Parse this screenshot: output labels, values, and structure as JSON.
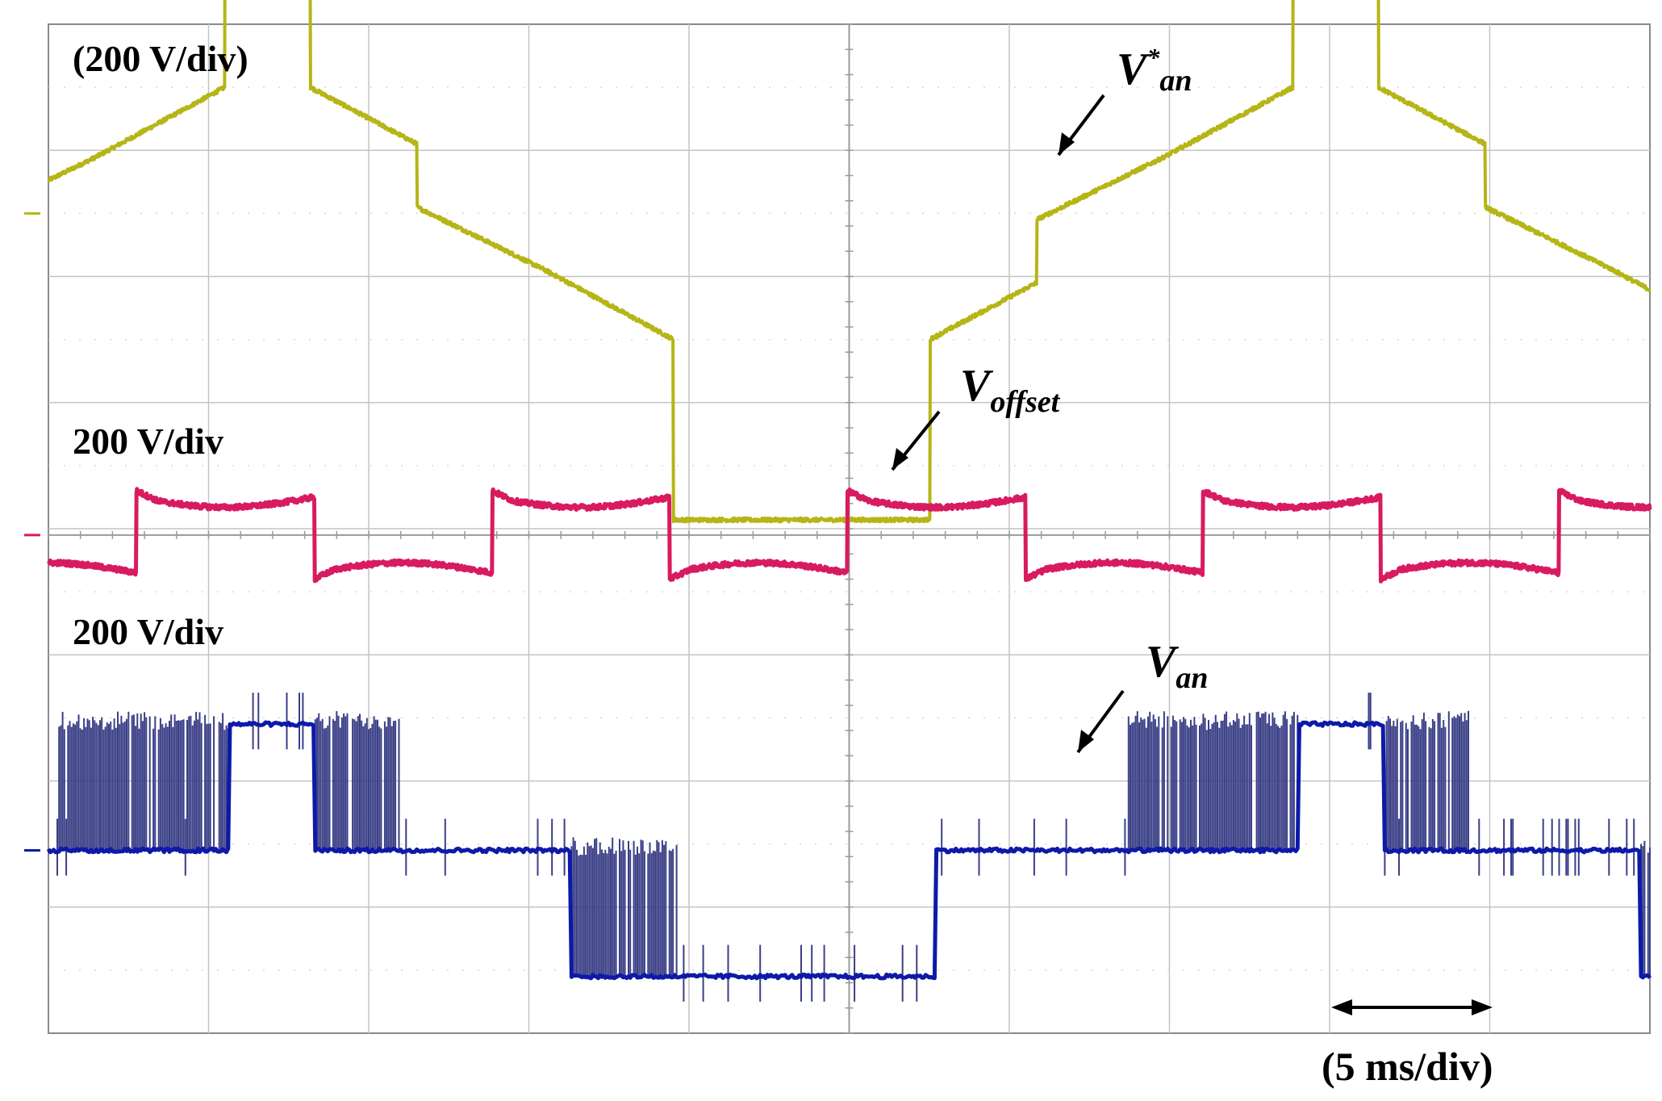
{
  "chart_data": {
    "type": "line",
    "grid": true,
    "divisions": {
      "x": 10,
      "y": 8
    },
    "time_scale_label": "(5 ms/div)",
    "channels": [
      {
        "label": "(200 V/div)",
        "signal": "V",
        "signal_sup": "*",
        "signal_sub": "an",
        "color": "#b5b516",
        "ground_div": 6.5,
        "period_div": 6.67,
        "phase_div": 4.97,
        "plateau_levels_div": [
          -2.43,
          -1.0,
          0,
          1.0,
          2.43
        ],
        "segments": [
          {
            "from_phase": 0.0,
            "to_phase": 0.08,
            "values_div": [
              -2.43,
              -2.43
            ]
          },
          {
            "from_phase": 0.08,
            "to_phase": 0.18,
            "values_div": [
              -1.0,
              -0.55
            ]
          },
          {
            "from_phase": 0.18,
            "to_phase": 0.3,
            "values_div": [
              -0.05,
              0.45
            ]
          },
          {
            "from_phase": 0.3,
            "to_phase": 0.42,
            "values_div": [
              0.45,
              1.0
            ]
          },
          {
            "from_phase": 0.42,
            "to_phase": 0.5,
            "values_div": [
              2.43,
              2.43
            ]
          },
          {
            "from_phase": 0.5,
            "to_phase": 0.6,
            "values_div": [
              1.0,
              0.55
            ]
          },
          {
            "from_phase": 0.6,
            "to_phase": 0.72,
            "values_div": [
              0.05,
              -0.45
            ]
          },
          {
            "from_phase": 0.72,
            "to_phase": 0.84,
            "values_div": [
              -0.45,
              -1.0
            ]
          },
          {
            "from_phase": 0.84,
            "to_phase": 1.0,
            "values_div": [
              -2.43,
              -2.43
            ]
          }
        ]
      },
      {
        "label": "200 V/div",
        "signal": "V",
        "signal_sub": "offset",
        "color": "#d81b60",
        "ground_div": 3.95,
        "period_div": 2.22,
        "phase_div": 0.55,
        "high_div": 0.3,
        "low_div": -0.3
      },
      {
        "label": "200 V/div",
        "signal": "V",
        "signal_sub": "an",
        "color": "#0d1aa8",
        "ground_div": 1.45,
        "period_div": 6.67,
        "phase_div": 5.0,
        "levels_div": [
          -1.0,
          0,
          1.0
        ]
      }
    ]
  }
}
